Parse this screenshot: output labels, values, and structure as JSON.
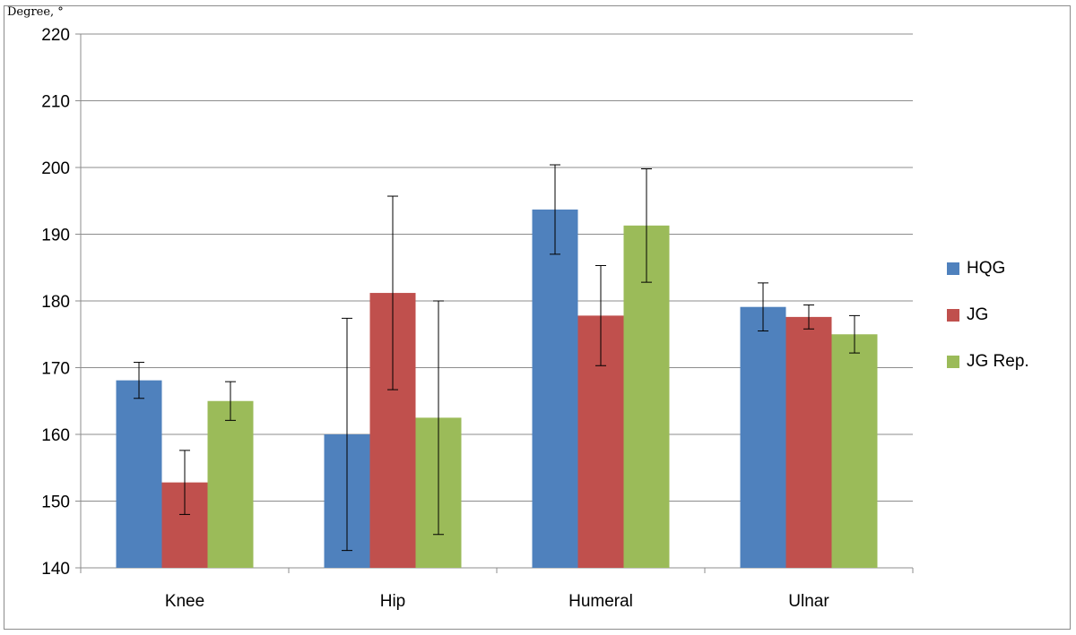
{
  "chart_data": {
    "type": "bar",
    "title": "",
    "ylabel": "Degree, °",
    "xlabel": "",
    "ylim": [
      140,
      220
    ],
    "yticks": [
      140,
      150,
      160,
      170,
      180,
      190,
      200,
      210,
      220
    ],
    "grid": true,
    "legend_position": "right",
    "categories": [
      "Knee",
      "Hip",
      "Humeral",
      "Ulnar"
    ],
    "series": [
      {
        "name": "HQG",
        "color": "#4f81bd",
        "values": [
          168.1,
          160.0,
          193.7,
          179.1
        ],
        "errors": [
          2.7,
          17.4,
          6.7,
          3.6
        ]
      },
      {
        "name": "JG",
        "color": "#c0504d",
        "values": [
          152.8,
          181.2,
          177.8,
          177.6
        ],
        "errors": [
          4.8,
          14.5,
          7.5,
          1.8
        ]
      },
      {
        "name": "JG Rep.",
        "color": "#9bbb59",
        "values": [
          165.0,
          162.5,
          191.3,
          175.0
        ],
        "errors": [
          2.9,
          17.5,
          8.5,
          2.8
        ]
      }
    ]
  }
}
